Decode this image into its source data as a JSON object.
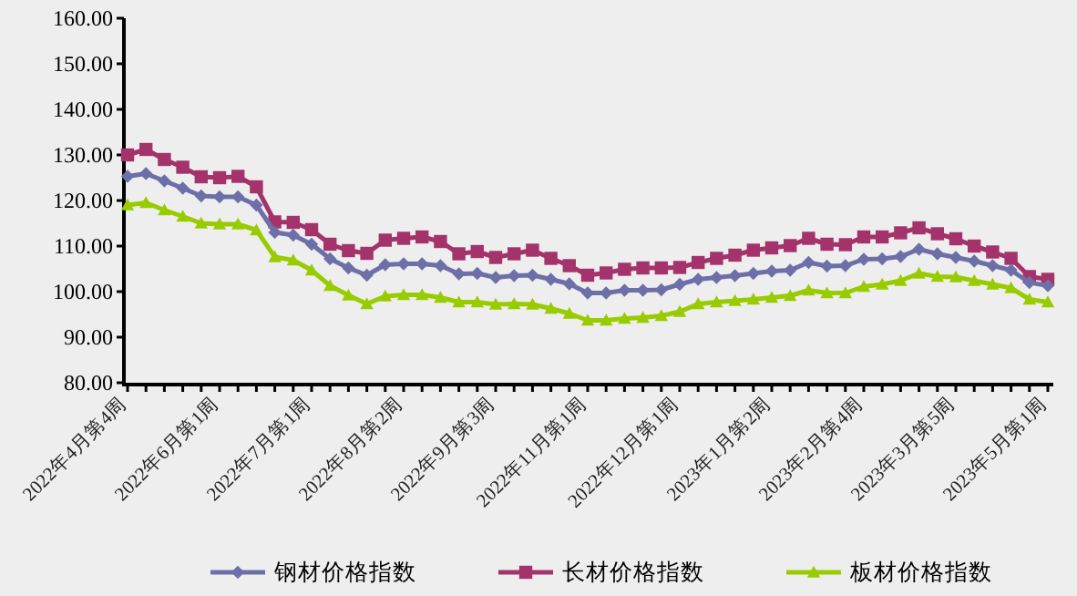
{
  "chart_data": {
    "type": "line",
    "categories": [
      "2022年4月第4周",
      null,
      null,
      null,
      null,
      "2022年6月第1周",
      null,
      null,
      null,
      null,
      "2022年7月第1周",
      null,
      null,
      null,
      null,
      "2022年8月第2周",
      null,
      null,
      null,
      null,
      "2022年9月第3周",
      null,
      null,
      null,
      null,
      "2022年11月第1周",
      null,
      null,
      null,
      null,
      "2022年12月第1周",
      null,
      null,
      null,
      null,
      "2023年1月第2周",
      null,
      null,
      null,
      null,
      "2023年2月第4周",
      null,
      null,
      null,
      null,
      "2023年3月第5周",
      null,
      null,
      null,
      null,
      "2023年5月第1周"
    ],
    "series": [
      {
        "name": "钢材价格指数",
        "color": "#6d6fa8",
        "marker": "diamond",
        "values": [
          125.3,
          125.9,
          124.3,
          122.7,
          121,
          120.8,
          120.8,
          119,
          113,
          112.4,
          110.4,
          107.2,
          105.2,
          103.6,
          105.9,
          106.1,
          106.1,
          105.7,
          103.9,
          104,
          103.1,
          103.5,
          103.6,
          102.7,
          101.7,
          99.7,
          99.7,
          100.3,
          100.3,
          100.4,
          101.6,
          102.7,
          103.1,
          103.5,
          104,
          104.5,
          104.7,
          106.4,
          105.6,
          105.7,
          107.1,
          107.2,
          107.7,
          109.3,
          108.3,
          107.5,
          106.7,
          105.7,
          104.7,
          102,
          101.3
        ]
      },
      {
        "name": "长材价格指数",
        "color": "#a3336a",
        "marker": "square",
        "values": [
          130,
          131.2,
          129,
          127.3,
          125.2,
          125,
          125.3,
          123,
          115.3,
          115.2,
          113.6,
          110.4,
          109,
          108.4,
          111.3,
          111.7,
          112,
          111,
          108.3,
          108.8,
          107.5,
          108.3,
          109.1,
          107.3,
          105.7,
          103.6,
          104.1,
          104.9,
          105.2,
          105.2,
          105.3,
          106.4,
          107.3,
          108,
          109.1,
          109.6,
          110.1,
          111.7,
          110.4,
          110.3,
          112,
          112,
          112.9,
          114,
          112.7,
          111.6,
          110,
          108.7,
          107.3,
          103.3,
          102.7
        ]
      },
      {
        "name": "板材价格指数",
        "color": "#99cc00",
        "marker": "triangle",
        "values": [
          119,
          119.5,
          117.9,
          116.5,
          115,
          114.8,
          114.8,
          113.5,
          107.6,
          106.9,
          104.7,
          101.3,
          99.2,
          97.3,
          99,
          99.3,
          99.3,
          98.7,
          97.7,
          97.7,
          97.2,
          97.3,
          97.2,
          96.3,
          95.2,
          93.7,
          93.7,
          94.1,
          94.3,
          94.7,
          95.6,
          97.3,
          97.7,
          98,
          98.3,
          98.7,
          99.1,
          100.3,
          99.7,
          99.7,
          101.1,
          101.6,
          102.4,
          104,
          103.3,
          103.2,
          102.4,
          101.6,
          100.8,
          98.3,
          97.7
        ]
      }
    ],
    "ylim": [
      80,
      160
    ],
    "yticks": [
      {
        "value": 80,
        "label": "80.00"
      },
      {
        "value": 90,
        "label": "90.00"
      },
      {
        "value": 100,
        "label": "100.00"
      },
      {
        "value": 110,
        "label": "110.00"
      },
      {
        "value": 120,
        "label": "120.00"
      },
      {
        "value": 130,
        "label": "130.00"
      },
      {
        "value": 140,
        "label": "140.00"
      },
      {
        "value": 150,
        "label": "150.00"
      },
      {
        "value": 160,
        "label": "160.00"
      }
    ],
    "grid": false,
    "legend": "bottom",
    "line_style": "solid"
  }
}
